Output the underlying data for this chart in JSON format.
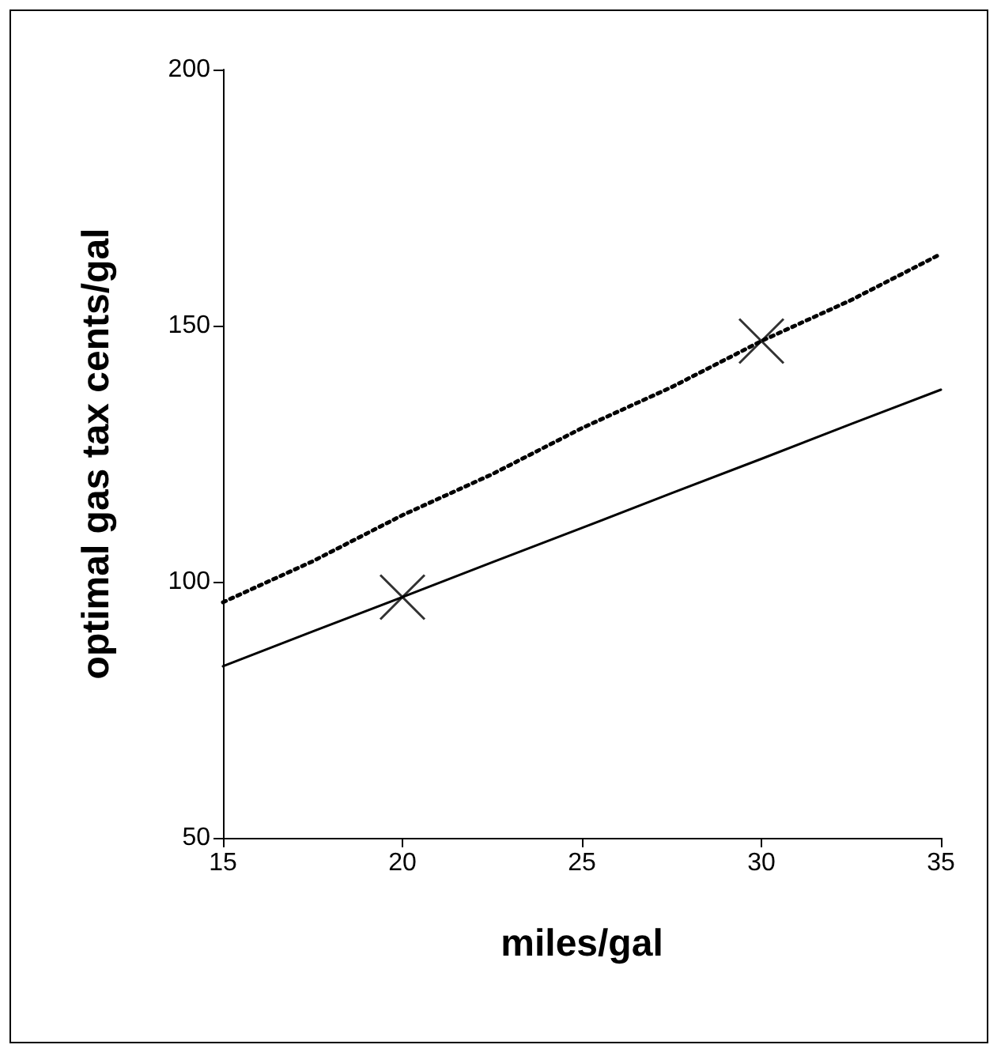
{
  "chart_data": {
    "type": "line",
    "xlabel": "miles/gal",
    "ylabel": "optimal gas tax cents/gal",
    "x": [
      15,
      17.5,
      20,
      22.5,
      25,
      27.5,
      30,
      32.5,
      35
    ],
    "series": [
      {
        "color": "#000000",
        "line_style": "dotted",
        "marker": "none",
        "values": [
          96,
          104,
          113,
          121,
          130,
          138,
          147,
          155,
          164
        ]
      },
      {
        "color": "#000000",
        "line_style": "solid",
        "marker": "none",
        "values": [
          83.5,
          90.3,
          97,
          103.8,
          110.5,
          117.3,
          124,
          130.8,
          137.5
        ]
      },
      {
        "type": "scatter",
        "color": "#000000",
        "marker": "cross",
        "x": [
          20,
          30
        ],
        "values": [
          97,
          147
        ]
      }
    ],
    "xlim": [
      15,
      35
    ],
    "xticks": [
      15,
      20,
      25,
      30,
      35
    ],
    "ylim": [
      50,
      200
    ],
    "yticks": [
      50,
      100,
      150,
      200
    ]
  }
}
